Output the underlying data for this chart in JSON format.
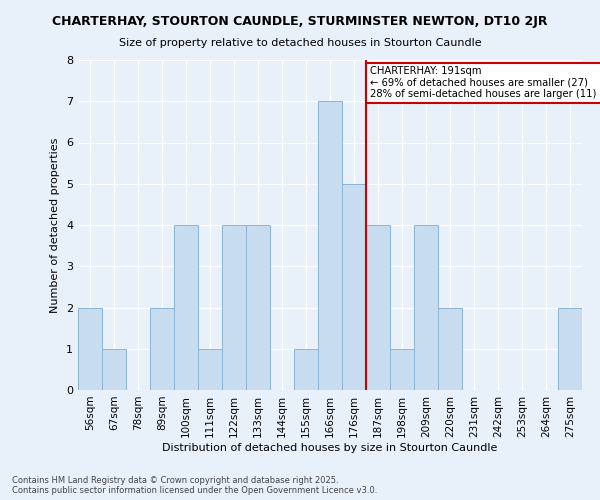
{
  "title": "CHARTERHAY, STOURTON CAUNDLE, STURMINSTER NEWTON, DT10 2JR",
  "subtitle": "Size of property relative to detached houses in Stourton Caundle",
  "xlabel": "Distribution of detached houses by size in Stourton Caundle",
  "ylabel": "Number of detached properties",
  "categories": [
    "56sqm",
    "67sqm",
    "78sqm",
    "89sqm",
    "100sqm",
    "111sqm",
    "122sqm",
    "133sqm",
    "144sqm",
    "155sqm",
    "166sqm",
    "176sqm",
    "187sqm",
    "198sqm",
    "209sqm",
    "220sqm",
    "231sqm",
    "242sqm",
    "253sqm",
    "264sqm",
    "275sqm"
  ],
  "values": [
    2,
    1,
    0,
    2,
    4,
    1,
    4,
    4,
    0,
    1,
    7,
    5,
    4,
    1,
    4,
    2,
    0,
    0,
    0,
    0,
    2
  ],
  "bar_color": "#c8dcf0",
  "bar_edge_color": "#8ab4d8",
  "background_color": "#e8f0fa",
  "grid_color": "#ffffff",
  "red_line_x": 11.5,
  "annotation_text": "CHARTERHAY: 191sqm\n← 69% of detached houses are smaller (27)\n28% of semi-detached houses are larger (11) →",
  "annotation_box_color": "#ffffff",
  "annotation_box_edge": "#cc0000",
  "red_line_color": "#cc0000",
  "ylim": [
    0,
    8
  ],
  "yticks": [
    0,
    1,
    2,
    3,
    4,
    5,
    6,
    7,
    8
  ],
  "footer": "Contains HM Land Registry data © Crown copyright and database right 2025.\nContains public sector information licensed under the Open Government Licence v3.0."
}
